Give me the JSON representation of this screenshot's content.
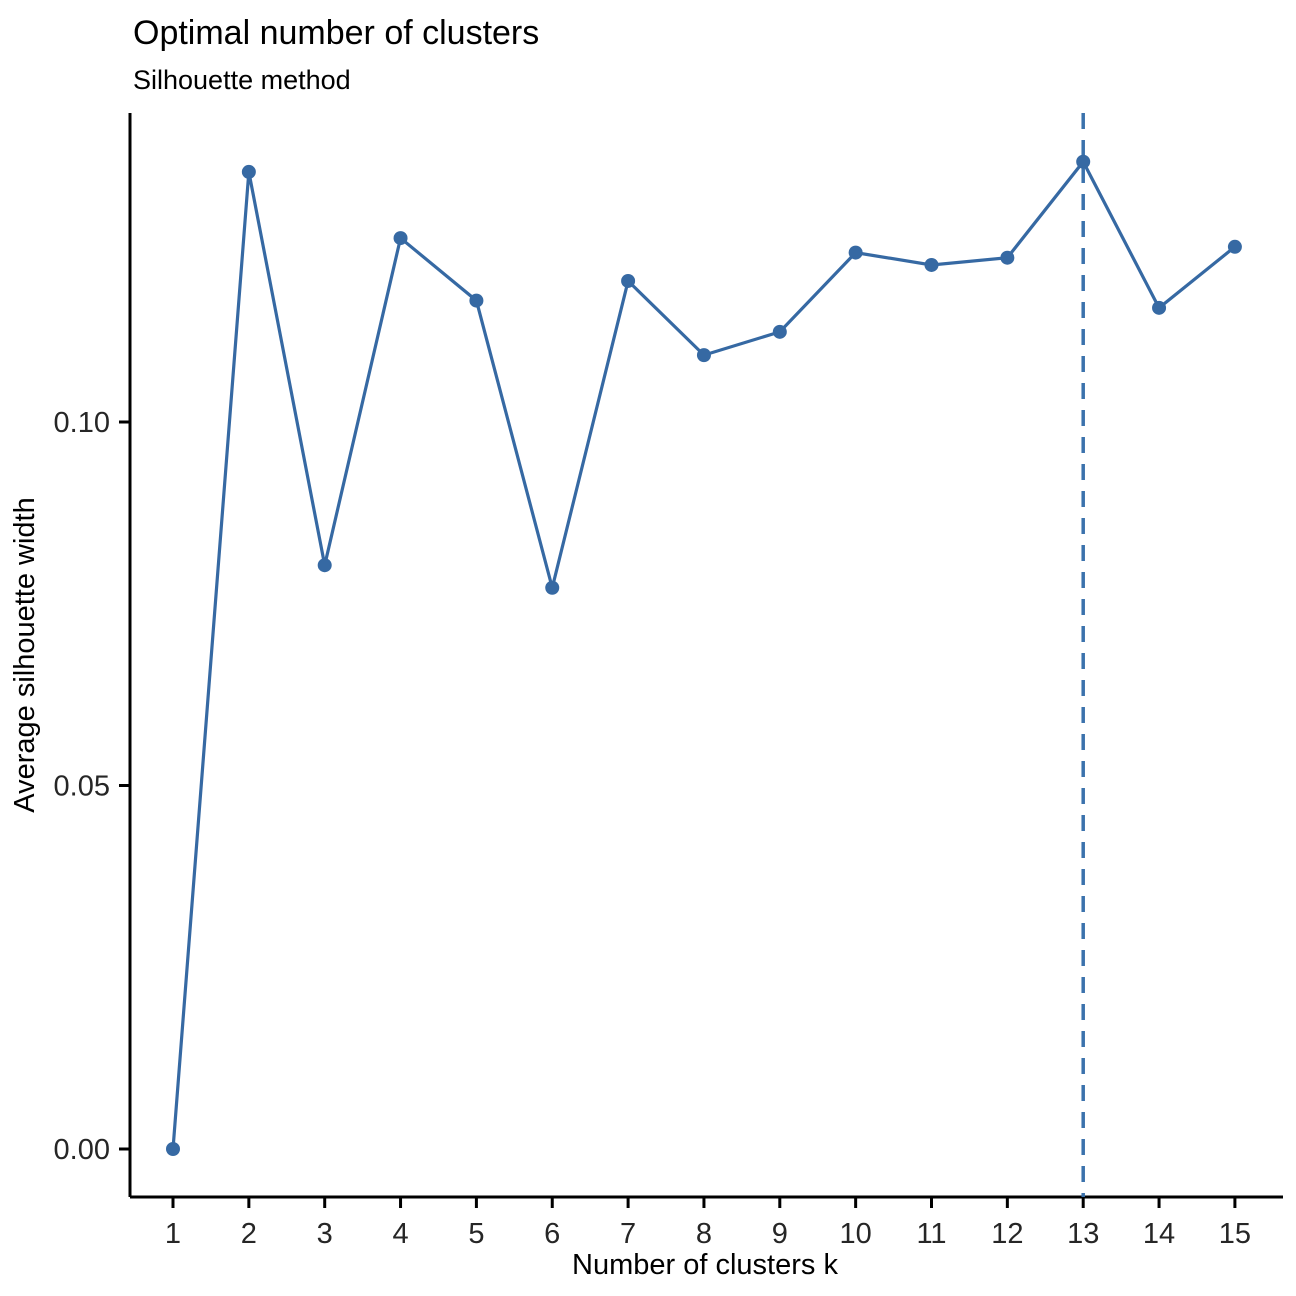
{
  "title": "Optimal number of clusters",
  "subtitle": "Silhouette method",
  "chart_data": {
    "type": "line",
    "title": "Optimal number of clusters",
    "subtitle": "Silhouette method",
    "xlabel": "Number of clusters k",
    "ylabel": "Average silhouette width",
    "x": [
      1,
      2,
      3,
      4,
      5,
      6,
      7,
      8,
      9,
      10,
      11,
      12,
      13,
      14,
      15
    ],
    "values": [
      0.0,
      0.1344,
      0.0803,
      0.1253,
      0.1167,
      0.0772,
      0.1194,
      0.1092,
      0.1124,
      0.1233,
      0.1216,
      0.1226,
      0.1358,
      0.1157,
      0.1241
    ],
    "xlim": [
      1,
      15
    ],
    "ylim": [
      0.0,
      0.1425
    ],
    "yticks": [
      0.0,
      0.05,
      0.1
    ],
    "ytick_labels": [
      "0.00",
      "0.05",
      "0.10"
    ],
    "xtick_labels": [
      "1",
      "2",
      "3",
      "4",
      "5",
      "6",
      "7",
      "8",
      "9",
      "10",
      "11",
      "12",
      "13",
      "14",
      "15"
    ],
    "optimal_k": 13,
    "vline": {
      "x": 13,
      "style": "dashed"
    },
    "grid": false,
    "legend": "none",
    "series_color": "#3669A3",
    "vline_color": "#3B72AC",
    "axis_color": "#000000"
  }
}
